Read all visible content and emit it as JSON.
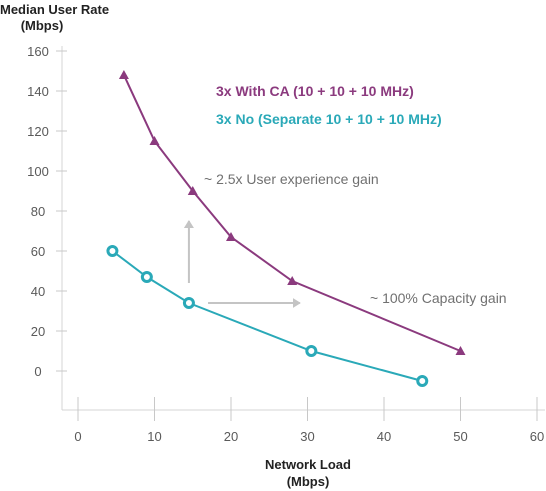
{
  "chart_data": {
    "type": "line",
    "ylabel_line1": "Median User Rate",
    "ylabel_line2": "(Mbps)",
    "xlabel_line1": "Network Load",
    "xlabel_line2": "(Mbps)",
    "xlim": [
      0,
      60
    ],
    "ylim": [
      -20,
      160
    ],
    "x_ticks": [
      0,
      10,
      20,
      30,
      40,
      50,
      60
    ],
    "y_ticks": [
      0,
      20,
      40,
      60,
      80,
      100,
      120,
      140,
      160
    ],
    "grid": false,
    "series": [
      {
        "name": "3x With CA (10 + 10 + 10 MHz)",
        "color": "#8b3a7e",
        "marker": "triangle",
        "x": [
          6,
          10,
          15,
          20,
          28,
          50
        ],
        "y": [
          148,
          115,
          90,
          67,
          45,
          10
        ]
      },
      {
        "name": "3x No  (Separate 10 + 10 + 10 MHz)",
        "color": "#2aa9b8",
        "marker": "circle",
        "x": [
          4.5,
          9,
          14.5,
          30.5,
          45
        ],
        "y": [
          60,
          47,
          34,
          10,
          -5
        ]
      }
    ],
    "annotations": [
      {
        "text": "~ 2.5x User experience gain",
        "arrow": "up",
        "arrow_x": 14.5,
        "arrow_y": [
          44,
          75
        ]
      },
      {
        "text": "~ 100% Capacity gain",
        "arrow": "right",
        "arrow_y": 34,
        "arrow_x": [
          17,
          29
        ]
      }
    ],
    "arrow_color": "#c4c4c4"
  }
}
